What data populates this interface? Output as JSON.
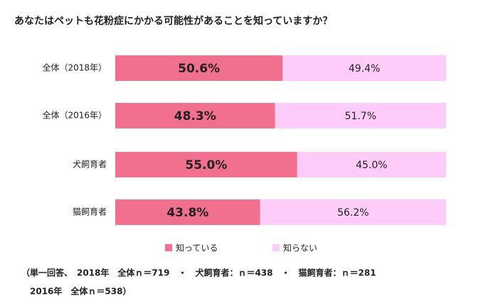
{
  "chart_data": {
    "type": "stacked-bar-horizontal",
    "title": "あなたはペットも花粉症にかかる可能性があることを知っていますか？",
    "categories": [
      "全体（2018年）",
      "全体（2016年）",
      "犬飼育者",
      "猫飼育者"
    ],
    "series": [
      {
        "name": "知っている",
        "color": "#f0708e",
        "values": [
          50.6,
          48.3,
          55.0,
          43.8
        ],
        "value_labels": [
          "50.6%",
          "48.3%",
          "55.0%",
          "43.8%"
        ]
      },
      {
        "name": "知らない",
        "color": "#ffccfa",
        "values": [
          49.4,
          51.7,
          45.0,
          56.2
        ],
        "value_labels": [
          "49.4%",
          "51.7%",
          "45.0%",
          "56.2%"
        ]
      }
    ],
    "annotations": [
      "（単一回答、　2018年　全体ｎ＝719　・　犬飼育者：ｎ＝438　・　猫飼育者：ｎ＝281",
      "2016年　全体ｎ＝538）"
    ]
  }
}
